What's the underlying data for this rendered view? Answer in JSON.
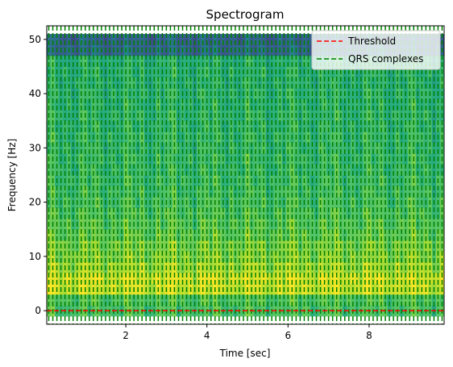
{
  "chart_data": {
    "type": "heatmap",
    "title": "Spectrogram",
    "xlabel": "Time [sec]",
    "ylabel": "Frequency [Hz]",
    "xlim": [
      0.05,
      9.85
    ],
    "ylim": [
      -2.5,
      52.5
    ],
    "xticks": [
      2,
      4,
      6,
      8
    ],
    "yticks": [
      0,
      10,
      20,
      30,
      40,
      50
    ],
    "colormap": "viridis",
    "time_bins": 98,
    "freq_bins": [
      0,
      2,
      4,
      6,
      8,
      10,
      12,
      14,
      16,
      18,
      20,
      22,
      24,
      26,
      28,
      30,
      32,
      34,
      36,
      38,
      40,
      42,
      44,
      46,
      48,
      50
    ],
    "band_levels": [
      {
        "freq": 0,
        "level": 0.72
      },
      {
        "freq": 2,
        "level": 0.74
      },
      {
        "freq": 4,
        "level": 0.94
      },
      {
        "freq": 6,
        "level": 0.95
      },
      {
        "freq": 8,
        "level": 0.88
      },
      {
        "freq": 10,
        "level": 0.84
      },
      {
        "freq": 12,
        "level": 0.82
      },
      {
        "freq": 14,
        "level": 0.78
      },
      {
        "freq": 16,
        "level": 0.76
      },
      {
        "freq": 18,
        "level": 0.74
      },
      {
        "freq": 20,
        "level": 0.72
      },
      {
        "freq": 22,
        "level": 0.71
      },
      {
        "freq": 24,
        "level": 0.7
      },
      {
        "freq": 26,
        "level": 0.69
      },
      {
        "freq": 28,
        "level": 0.69
      },
      {
        "freq": 30,
        "level": 0.68
      },
      {
        "freq": 32,
        "level": 0.68
      },
      {
        "freq": 34,
        "level": 0.67
      },
      {
        "freq": 36,
        "level": 0.67
      },
      {
        "freq": 38,
        "level": 0.66
      },
      {
        "freq": 40,
        "level": 0.66
      },
      {
        "freq": 42,
        "level": 0.65
      },
      {
        "freq": 44,
        "level": 0.65
      },
      {
        "freq": 46,
        "level": 0.64
      },
      {
        "freq": 48,
        "level": 0.33
      },
      {
        "freq": 50,
        "level": 0.31
      }
    ],
    "threshold": {
      "name": "Threshold",
      "value": 0,
      "color": "#ff0000"
    },
    "qrs_complexes": {
      "name": "QRS complexes",
      "color": "#008000",
      "times": [
        0.1,
        0.2,
        0.3,
        0.4,
        0.5,
        0.6,
        0.7,
        0.8,
        0.9,
        1.0,
        1.1,
        1.2,
        1.3,
        1.4,
        1.5,
        1.6,
        1.7,
        1.8,
        1.9,
        2.0,
        2.1,
        2.2,
        2.3,
        2.4,
        2.5,
        2.6,
        2.7,
        2.8,
        2.9,
        3.0,
        3.1,
        3.2,
        3.3,
        3.4,
        3.5,
        3.6,
        3.7,
        3.8,
        3.9,
        4.0,
        4.1,
        4.2,
        4.3,
        4.4,
        4.5,
        4.6,
        4.7,
        4.8,
        4.9,
        5.0,
        5.1,
        5.2,
        5.3,
        5.4,
        5.5,
        5.6,
        5.7,
        5.8,
        5.9,
        6.0,
        6.1,
        6.2,
        6.3,
        6.4,
        6.5,
        6.6,
        6.7,
        6.8,
        6.9,
        7.0,
        7.1,
        7.2,
        7.3,
        7.4,
        7.5,
        7.6,
        7.7,
        7.8,
        7.9,
        8.0,
        8.1,
        8.2,
        8.3,
        8.4,
        8.5,
        8.6,
        8.7,
        8.8,
        8.9,
        9.0,
        9.1,
        9.2,
        9.3,
        9.4,
        9.5,
        9.6,
        9.7,
        9.8
      ]
    },
    "legend": {
      "position": "top-right",
      "entries": [
        "Threshold",
        "QRS complexes"
      ]
    },
    "grid": false
  }
}
